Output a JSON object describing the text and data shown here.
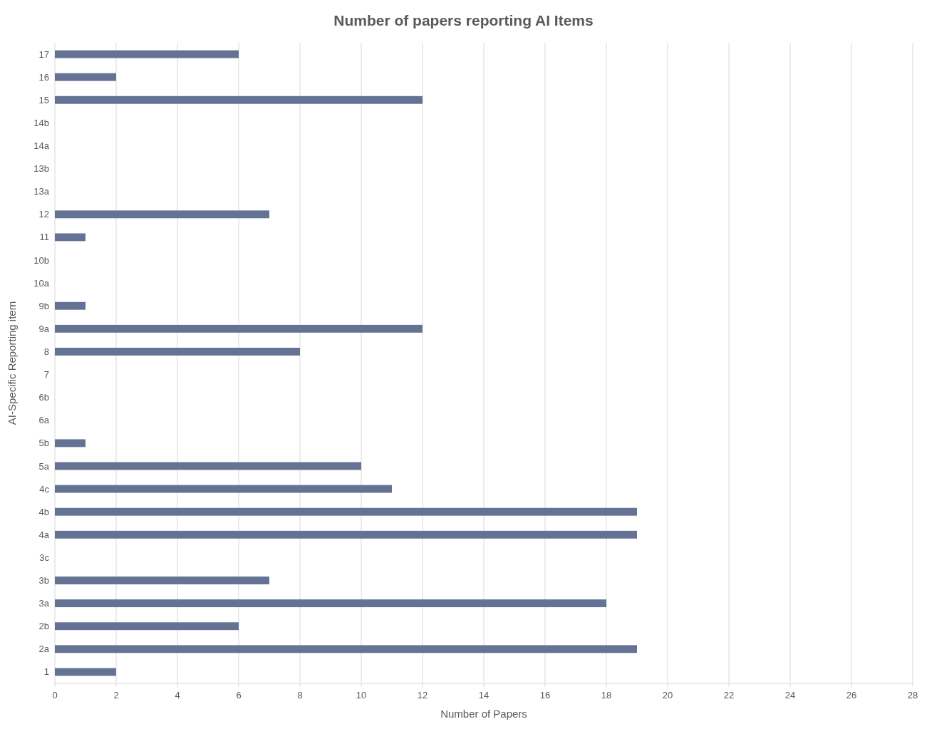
{
  "chart_data": {
    "type": "bar",
    "orientation": "horizontal",
    "title": "Number of papers reporting AI Items",
    "xlabel": "Number of Papers",
    "ylabel": "AI-Specific Reporting item",
    "categories": [
      "17",
      "16",
      "15",
      "14b",
      "14a",
      "13b",
      "13a",
      "12",
      "11",
      "10b",
      "10a",
      "9b",
      "9a",
      "8",
      "7",
      "6b",
      "6a",
      "5b",
      "5a",
      "4c",
      "4b",
      "4a",
      "3c",
      "3b",
      "3a",
      "2b",
      "2a",
      "1"
    ],
    "values": [
      6,
      2,
      12,
      0,
      0,
      0,
      0,
      7,
      1,
      0,
      0,
      1,
      12,
      8,
      0,
      0,
      0,
      1,
      10,
      11,
      19,
      19,
      0,
      7,
      18,
      6,
      19,
      2
    ],
    "color": "#647393",
    "xlim": [
      0,
      28
    ],
    "xticks": [
      0,
      2,
      4,
      6,
      8,
      10,
      12,
      14,
      16,
      18,
      20,
      22,
      24,
      26,
      28
    ],
    "grid": "x"
  }
}
